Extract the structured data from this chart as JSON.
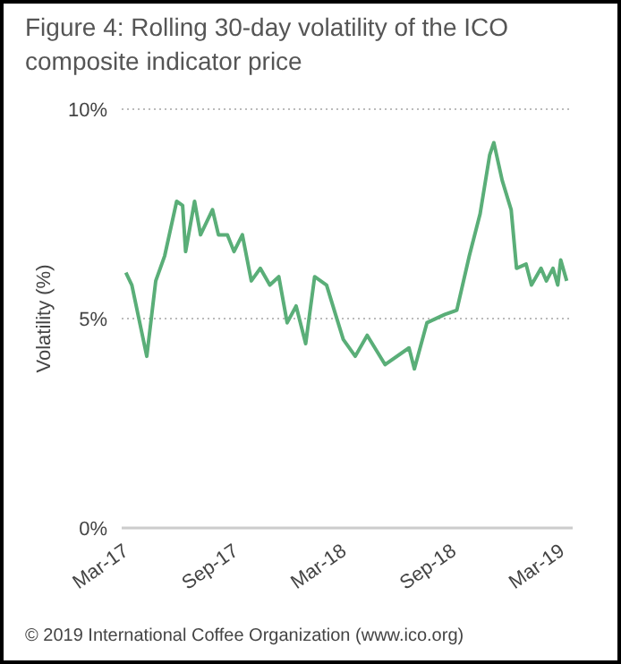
{
  "chart_data": {
    "type": "line",
    "title": "Figure 4: Rolling 30-day volatility of the ICO composite indicator price",
    "ylabel": "Volatility (%)",
    "annotations": [
      "© 2019 International Coffee Organization (www.ico.org)"
    ],
    "x": [
      "2017-03-08",
      "2017-03-18",
      "2017-04-12",
      "2017-04-27",
      "2017-05-12",
      "2017-06-01",
      "2017-06-11",
      "2017-06-16",
      "2017-07-01",
      "2017-07-11",
      "2017-07-31",
      "2017-08-10",
      "2017-08-25",
      "2017-09-05",
      "2017-09-19",
      "2017-10-04",
      "2017-10-19",
      "2017-11-04",
      "2017-11-19",
      "2017-12-03",
      "2017-12-18",
      "2018-01-03",
      "2018-01-18",
      "2018-02-07",
      "2018-02-22",
      "2018-03-07",
      "2018-03-27",
      "2018-04-16",
      "2018-05-16",
      "2018-06-25",
      "2018-07-04",
      "2018-07-25",
      "2018-08-24",
      "2018-09-13",
      "2018-10-04",
      "2018-10-22",
      "2018-11-07",
      "2018-11-14",
      "2018-11-28",
      "2018-12-13",
      "2018-12-22",
      "2019-01-07",
      "2019-01-16",
      "2019-02-01",
      "2019-02-10",
      "2019-02-21",
      "2019-03-01",
      "2019-03-06",
      "2019-03-16"
    ],
    "series": [
      {
        "color": "#5aae78",
        "values": [
          6.1,
          5.8,
          4.1,
          5.9,
          6.5,
          7.8,
          7.7,
          6.6,
          7.8,
          7.0,
          7.6,
          7.0,
          7.0,
          6.6,
          7.0,
          5.9,
          6.2,
          5.8,
          6.0,
          4.9,
          5.3,
          4.4,
          6.0,
          5.8,
          5.1,
          4.5,
          4.1,
          4.6,
          3.9,
          4.3,
          3.8,
          4.9,
          5.1,
          5.2,
          6.5,
          7.5,
          8.9,
          9.2,
          8.3,
          7.6,
          6.2,
          6.3,
          5.8,
          6.2,
          5.9,
          6.2,
          5.8,
          6.4,
          5.9
        ]
      }
    ],
    "xlim": [
      "2017-03-01",
      "2019-03-26"
    ],
    "xticks": [
      {
        "value": "2017-03-01",
        "label": "Mar-17"
      },
      {
        "value": "2017-09-01",
        "label": "Sep-17"
      },
      {
        "value": "2018-03-01",
        "label": "Mar-18"
      },
      {
        "value": "2018-09-01",
        "label": "Sep-18"
      },
      {
        "value": "2019-03-01",
        "label": "Mar-19"
      }
    ],
    "ylim": [
      0,
      10
    ],
    "yticks": [
      {
        "value": 0,
        "label": "0%"
      },
      {
        "value": 5,
        "label": "5%"
      },
      {
        "value": 10,
        "label": "10%"
      }
    ],
    "grid": "y",
    "legend": false,
    "marker": "none",
    "line_style": "solid"
  }
}
